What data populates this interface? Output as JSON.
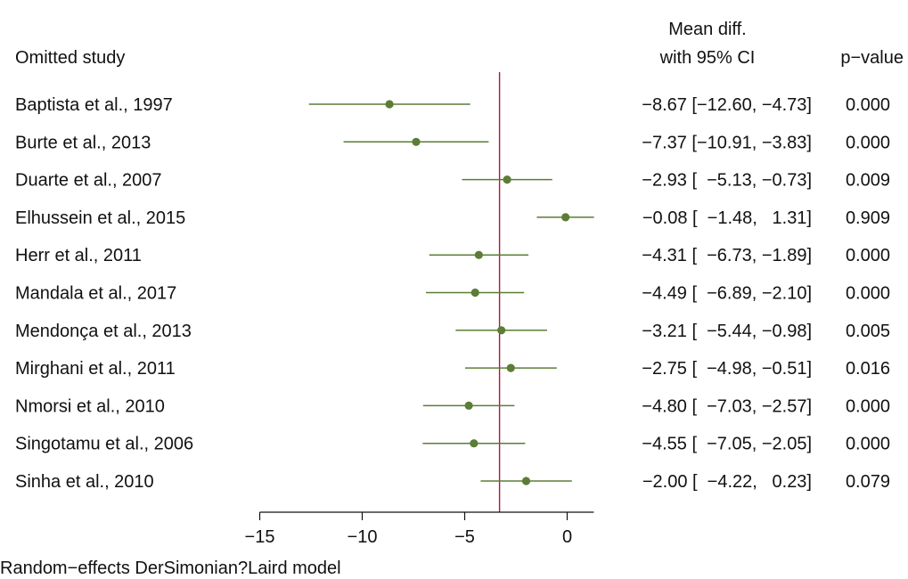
{
  "chart_data": {
    "type": "forest",
    "column_headers": {
      "study": "Omitted study",
      "effect_line1": "Mean diff.",
      "effect_line2": "with 95% CI",
      "pvalue": "p−value"
    },
    "studies": [
      {
        "name": "Baptista et al., 1997",
        "mean": -8.67,
        "lower": -12.6,
        "upper": -4.73,
        "ci_text": "−8.67 [−12.60, −4.73]",
        "p_value": "0.000"
      },
      {
        "name": "Burte et al., 2013",
        "mean": -7.37,
        "lower": -10.91,
        "upper": -3.83,
        "ci_text": "−7.37 [−10.91, −3.83]",
        "p_value": "0.000"
      },
      {
        "name": "Duarte et al., 2007",
        "mean": -2.93,
        "lower": -5.13,
        "upper": -0.73,
        "ci_text": "−2.93 [  −5.13, −0.73]",
        "p_value": "0.009"
      },
      {
        "name": "Elhussein et al., 2015",
        "mean": -0.08,
        "lower": -1.48,
        "upper": 1.31,
        "ci_text": "−0.08 [  −1.48,   1.31]",
        "p_value": "0.909"
      },
      {
        "name": "Herr et al., 2011",
        "mean": -4.31,
        "lower": -6.73,
        "upper": -1.89,
        "ci_text": "−4.31 [  −6.73, −1.89]",
        "p_value": "0.000"
      },
      {
        "name": "Mandala et al., 2017",
        "mean": -4.49,
        "lower": -6.89,
        "upper": -2.1,
        "ci_text": "−4.49 [  −6.89, −2.10]",
        "p_value": "0.000"
      },
      {
        "name": "Mendonça et al., 2013",
        "mean": -3.21,
        "lower": -5.44,
        "upper": -0.98,
        "ci_text": "−3.21 [  −5.44, −0.98]",
        "p_value": "0.005"
      },
      {
        "name": "Mirghani et al., 2011",
        "mean": -2.75,
        "lower": -4.98,
        "upper": -0.51,
        "ci_text": "−2.75 [  −4.98, −0.51]",
        "p_value": "0.016"
      },
      {
        "name": "Nmorsi et al., 2010",
        "mean": -4.8,
        "lower": -7.03,
        "upper": -2.57,
        "ci_text": "−4.80 [  −7.03, −2.57]",
        "p_value": "0.000"
      },
      {
        "name": "Singotamu et al., 2006",
        "mean": -4.55,
        "lower": -7.05,
        "upper": -2.05,
        "ci_text": "−4.55 [  −7.05, −2.05]",
        "p_value": "0.000"
      },
      {
        "name": "Sinha et al., 2010",
        "mean": -2.0,
        "lower": -4.22,
        "upper": 0.23,
        "ci_text": "−2.00 [  −4.22,   0.23]",
        "p_value": "0.079"
      }
    ],
    "reference_line": -3.3,
    "xlim": [
      -15,
      1.3
    ],
    "xticks": [
      -15,
      -10,
      -5,
      0
    ],
    "xtick_labels": [
      "−15",
      "−10",
      "−5",
      "0"
    ],
    "footnote": "Random−effects DerSimonian?Laird model",
    "colors": {
      "marker": "#5b7d35",
      "ci_line": "#5b7d35",
      "reference_line": "#b0144a",
      "axis": "#111111"
    }
  }
}
